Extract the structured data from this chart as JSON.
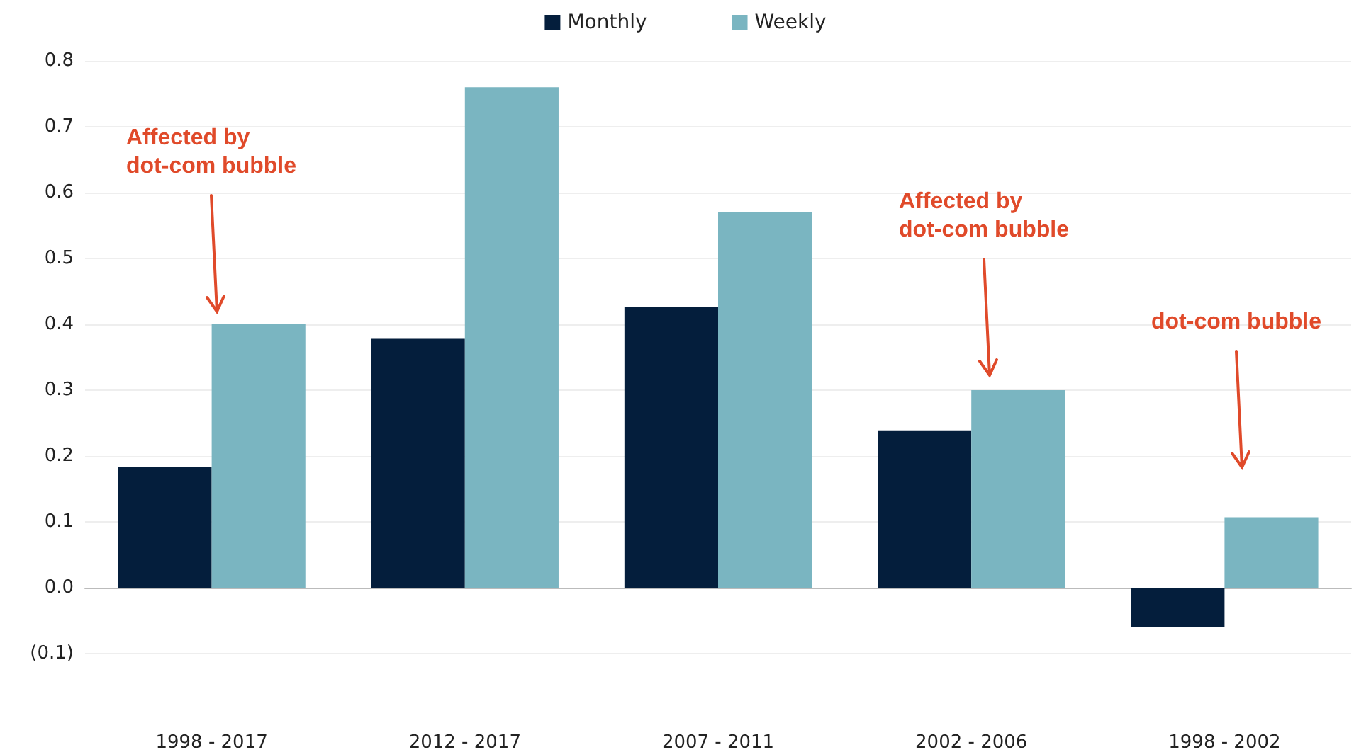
{
  "chart_data": {
    "type": "bar",
    "categories": [
      "1998 - 2017",
      "2012 - 2017",
      "2007 - 2011",
      "2002 - 2006",
      "1998 - 2002"
    ],
    "series": [
      {
        "name": "Monthly",
        "color": "#041e3c",
        "values": [
          0.184,
          0.378,
          0.426,
          0.239,
          -0.059
        ]
      },
      {
        "name": "Weekly",
        "color": "#7ab5c1",
        "values": [
          0.4,
          0.76,
          0.57,
          0.3,
          0.107
        ]
      }
    ],
    "ylim": [
      -0.1,
      0.8
    ],
    "yticks": [
      {
        "value": -0.1,
        "label": "(0.1)"
      },
      {
        "value": 0,
        "label": "0.0"
      },
      0.1,
      0.2,
      0.3,
      0.4,
      0.5,
      0.6,
      0.7,
      0.8
    ],
    "grid": "y",
    "legend": "top",
    "annotations": [
      "Affected by\ndot-com bubble",
      "Affected by\ndot-com bubble",
      "dot-com bubble"
    ]
  }
}
